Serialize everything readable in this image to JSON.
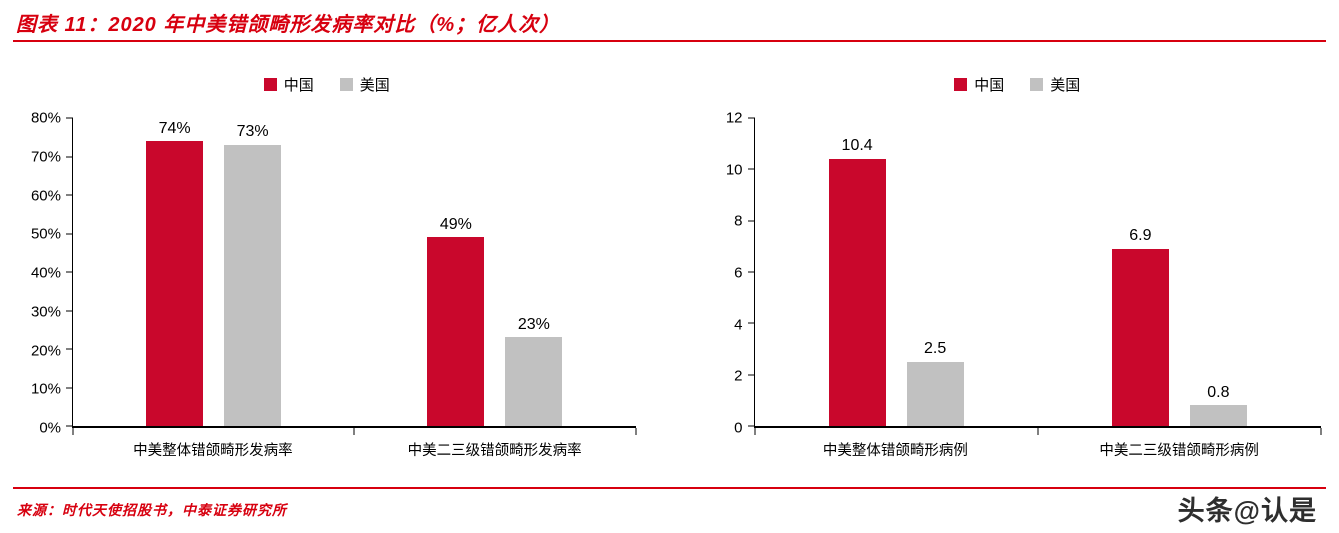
{
  "header": {
    "title": "图表 11：2020 年中美错颌畸形发病率对比（%；亿人次）"
  },
  "footer": {
    "source": "来源：时代天使招股书，中泰证券研究所",
    "watermark": "头条@认是"
  },
  "colors": {
    "brand_red": "#d7000f",
    "china_bar": "#c9072c",
    "us_bar": "#c1c1c1"
  },
  "chart_data": [
    {
      "type": "bar",
      "title": "",
      "categories": [
        "中美整体错颌畸形发病率",
        "中美二三级错颌畸形发病率"
      ],
      "series": [
        {
          "key": "china",
          "name": "中国",
          "color": "#c9072c",
          "values": [
            74,
            49
          ]
        },
        {
          "key": "us",
          "name": "美国",
          "color": "#c1c1c1",
          "values": [
            73,
            23
          ]
        }
      ],
      "value_labels": {
        "china": [
          "74%",
          "49%"
        ],
        "us": [
          "73%",
          "23%"
        ]
      },
      "ylim": [
        0,
        80
      ],
      "ytick_step": 10,
      "ytick_suffix": "%",
      "value_suffix": "%",
      "legend_position": "top",
      "grid": false
    },
    {
      "type": "bar",
      "title": "",
      "categories": [
        "中美整体错颌畸形病例",
        "中美二三级错颌畸形病例"
      ],
      "series": [
        {
          "key": "china",
          "name": "中国",
          "color": "#c9072c",
          "values": [
            10.4,
            6.9
          ]
        },
        {
          "key": "us",
          "name": "美国",
          "color": "#c1c1c1",
          "values": [
            2.5,
            0.8
          ]
        }
      ],
      "value_labels": {
        "china": [
          "10.4",
          "6.9"
        ],
        "us": [
          "2.5",
          "0.8"
        ]
      },
      "ylim": [
        0,
        12
      ],
      "ytick_step": 2,
      "ytick_suffix": "",
      "value_suffix": "",
      "legend_position": "top",
      "grid": false
    }
  ]
}
